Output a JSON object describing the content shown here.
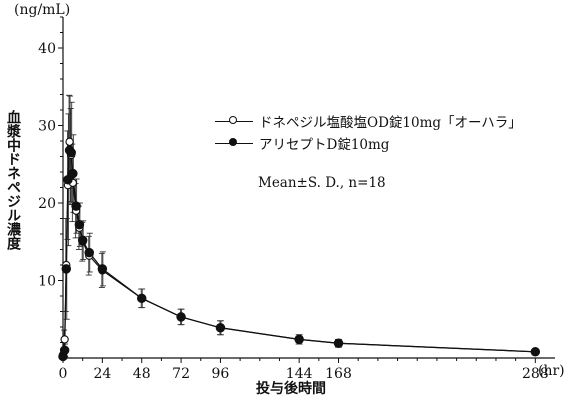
{
  "chart_data": {
    "type": "line",
    "title": "",
    "xlabel": "投与後時間",
    "ylabel": "血漿中ドネペジル濃度",
    "x_unit": "(hr)",
    "y_unit": "(ng/mL)",
    "xlim": [
      0,
      300
    ],
    "ylim": [
      0,
      44
    ],
    "x_ticks": [
      0,
      24,
      48,
      72,
      96,
      144,
      168,
      288
    ],
    "y_ticks": [
      10,
      20,
      30,
      40
    ],
    "annotation": "Mean±S. D., n=18",
    "legend_position": "top-right",
    "series": [
      {
        "name": "ドネペジル塩酸塩OD錠10mg「オーハラ」",
        "marker": "open-circle",
        "x": [
          0,
          1,
          2,
          3,
          4,
          5,
          6,
          8,
          10,
          12,
          16,
          24,
          48,
          72,
          96,
          144,
          168,
          288
        ],
        "y": [
          0.4,
          2.4,
          12.0,
          22.3,
          27.9,
          26.2,
          22.6,
          19.0,
          16.8,
          15.0,
          13.2,
          11.3,
          7.7,
          5.3,
          3.9,
          2.4,
          1.9,
          0.8
        ],
        "sd": [
          0.2,
          1.2,
          6.0,
          7.0,
          6.0,
          6.0,
          5.0,
          3.5,
          2.8,
          2.5,
          2.5,
          2.2,
          1.2,
          1.0,
          0.9,
          0.6,
          0.5,
          0.3
        ]
      },
      {
        "name": "アリセプトD錠10mg",
        "marker": "filled-circle",
        "x": [
          0,
          1,
          2,
          3,
          4,
          5,
          6,
          8,
          10,
          12,
          16,
          24,
          48,
          72,
          96,
          144,
          168,
          288
        ],
        "y": [
          0.2,
          1.0,
          11.5,
          23.0,
          26.8,
          26.5,
          23.8,
          19.6,
          17.2,
          15.2,
          13.6,
          11.5,
          7.7,
          5.3,
          3.9,
          2.4,
          1.9,
          0.8
        ],
        "sd": [
          0.1,
          0.8,
          6.5,
          8.5,
          7.0,
          6.5,
          5.0,
          3.5,
          2.8,
          2.5,
          2.5,
          2.2,
          1.2,
          1.0,
          0.9,
          0.6,
          0.5,
          0.3
        ]
      }
    ]
  }
}
